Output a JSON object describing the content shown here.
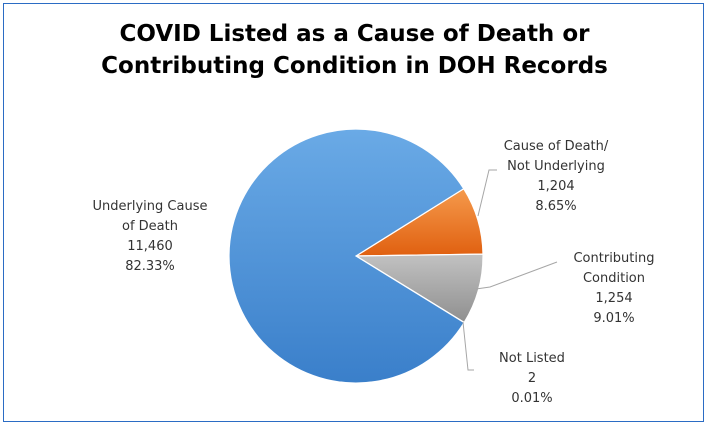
{
  "chart_data": {
    "type": "pie",
    "title_lines": [
      "COVID Listed as a Cause of Death or",
      "Contributing Condition in DOH Records"
    ],
    "slices": [
      {
        "label_lines": [
          "Cause of Death/",
          "Not Underlying"
        ],
        "value": 1204,
        "value_text": "1,204",
        "percent": 8.65,
        "percent_text": "8.65%",
        "color": "#f07a1e"
      },
      {
        "label_lines": [
          "Contributing",
          "Condition"
        ],
        "value": 1254,
        "value_text": "1,254",
        "percent": 9.01,
        "percent_text": "9.01%",
        "color": "#a5a5a5"
      },
      {
        "label_lines": [
          "Not Listed"
        ],
        "value": 2,
        "value_text": "2",
        "percent": 0.01,
        "percent_text": "0.01%",
        "color": "#ffc000"
      },
      {
        "label_lines": [
          "Underlying Cause",
          "of Death"
        ],
        "value": 11460,
        "value_text": "11,460",
        "percent": 82.33,
        "percent_text": "82.33%",
        "color": "#4a90d9"
      }
    ]
  }
}
